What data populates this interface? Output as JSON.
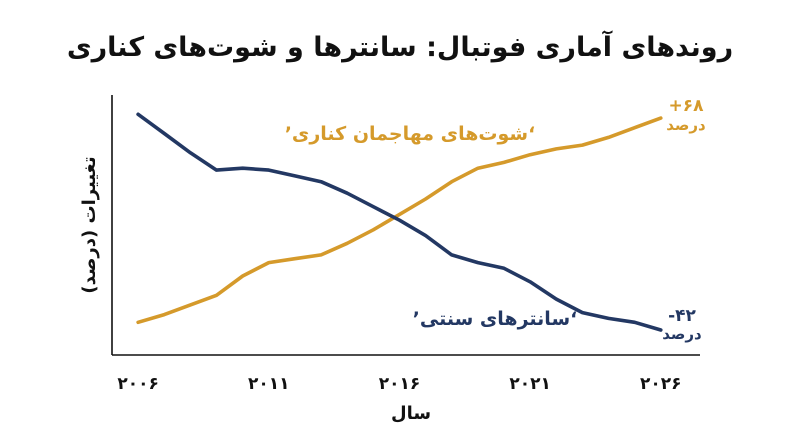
{
  "title": "روندهای آماری فوتبال: سانترها و شوت‌های کناری",
  "chart_data": {
    "type": "line",
    "xlabel": "سال",
    "ylabel": "تغییرات (درصد)",
    "x_ticks": [
      "۲۰۰۶",
      "۲۰۱۱",
      "۲۰۱۶",
      "۲۰۲۱",
      "۲۰۲۶"
    ],
    "x_tick_values": [
      2006,
      2011,
      2016,
      2021,
      2026
    ],
    "xlim": [
      2005,
      2027.5
    ],
    "ylim": [
      -55,
      80
    ],
    "grid": false,
    "series": [
      {
        "name": "شوت‌های مهاجمان کناری",
        "color": "#d59a2b",
        "x": [
          2006,
          2007,
          2008,
          2009,
          2010,
          2011,
          2012,
          2013,
          2014,
          2015,
          2016,
          2017,
          2018,
          2019,
          2020,
          2021,
          2022,
          2023,
          2024,
          2025,
          2026
        ],
        "y": [
          -38,
          -34,
          -29,
          -24,
          -14,
          -7,
          -5,
          -3,
          3,
          10,
          18,
          26,
          35,
          42,
          45,
          49,
          52,
          54,
          58,
          63,
          68
        ],
        "end_value": "+۶۸",
        "end_unit": "درصد"
      },
      {
        "name": "سانترهای سنتی",
        "color": "#233863",
        "x": [
          2006,
          2007,
          2008,
          2009,
          2010,
          2011,
          2012,
          2013,
          2014,
          2015,
          2016,
          2017,
          2018,
          2019,
          2020,
          2021,
          2022,
          2023,
          2024,
          2025,
          2026
        ],
        "y": [
          70,
          60,
          50,
          41,
          42,
          41,
          38,
          35,
          29,
          22,
          15,
          7,
          -3,
          -7,
          -10,
          -17,
          -26,
          -33,
          -36,
          -38,
          -42
        ],
        "end_value": "-۴۲",
        "end_unit": "درصد"
      }
    ]
  }
}
